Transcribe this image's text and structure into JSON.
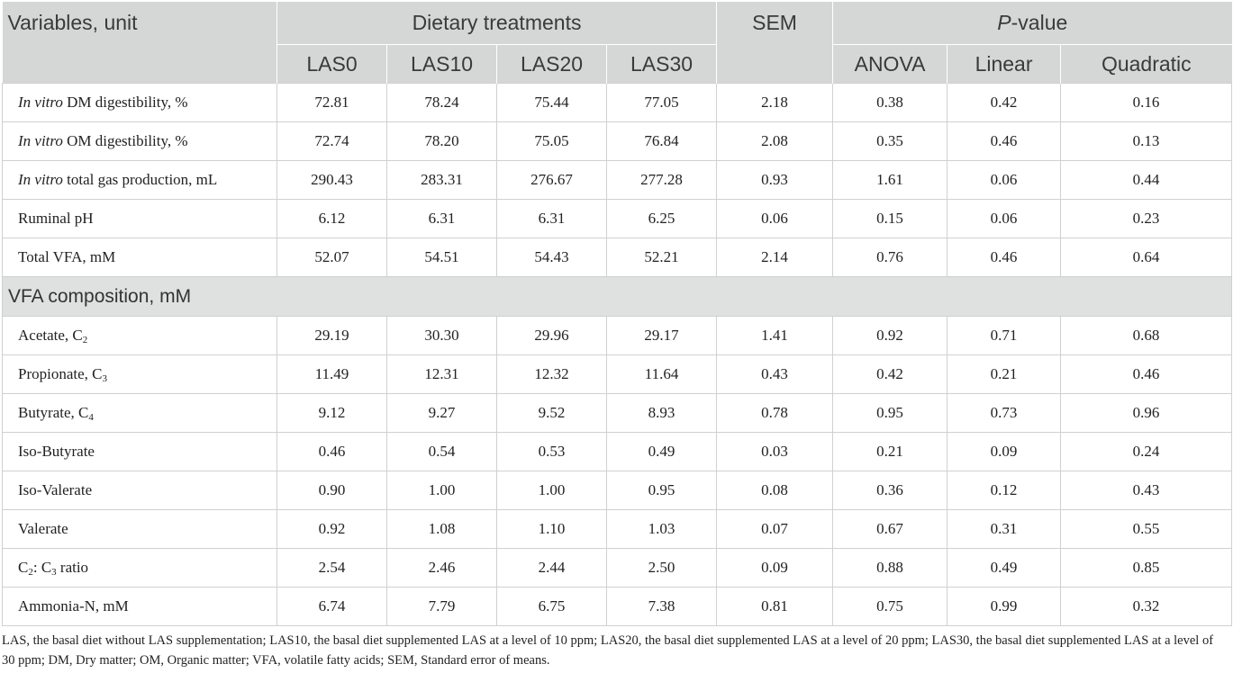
{
  "header": {
    "variables": "Variables, unit",
    "dietary_treatments": "Dietary treatments",
    "sem": "SEM",
    "p_value_letter": "P",
    "p_value_rest": "-value",
    "treatments": [
      "LAS0",
      "LAS10",
      "LAS20",
      "LAS30"
    ],
    "p_cols": [
      "ANOVA",
      "Linear",
      "Quadratic"
    ]
  },
  "rows_top": [
    {
      "italic": "In vitro",
      "label": " DM digestibility, %",
      "values": [
        "72.81",
        "78.24",
        "75.44",
        "77.05",
        "2.18",
        "0.38",
        "0.42",
        "0.16"
      ]
    },
    {
      "italic": "In vitro",
      "label": " OM digestibility, %",
      "values": [
        "72.74",
        "78.20",
        "75.05",
        "76.84",
        "2.08",
        "0.35",
        "0.46",
        "0.13"
      ]
    },
    {
      "italic": "In vitro",
      "label": " total gas production, mL",
      "values": [
        "290.43",
        "283.31",
        "276.67",
        "277.28",
        "0.93",
        "1.61",
        "0.06",
        "0.44"
      ]
    },
    {
      "label": "Ruminal pH",
      "values": [
        "6.12",
        "6.31",
        "6.31",
        "6.25",
        "0.06",
        "0.15",
        "0.06",
        "0.23"
      ]
    },
    {
      "label": "Total VFA, mM",
      "values": [
        "52.07",
        "54.51",
        "54.43",
        "52.21",
        "2.14",
        "0.76",
        "0.46",
        "0.64"
      ]
    }
  ],
  "section_label": "VFA composition, mM",
  "rows_vfa": [
    {
      "label": "Acetate, C",
      "sub": "2",
      "values": [
        "29.19",
        "30.30",
        "29.96",
        "29.17",
        "1.41",
        "0.92",
        "0.71",
        "0.68"
      ]
    },
    {
      "label": "Propionate, C",
      "sub": "3",
      "values": [
        "11.49",
        "12.31",
        "12.32",
        "11.64",
        "0.43",
        "0.42",
        "0.21",
        "0.46"
      ]
    },
    {
      "label": "Butyrate, C",
      "sub": "4",
      "values": [
        "9.12",
        "9.27",
        "9.52",
        "8.93",
        "0.78",
        "0.95",
        "0.73",
        "0.96"
      ]
    },
    {
      "label": "Iso-Butyrate",
      "values": [
        "0.46",
        "0.54",
        "0.53",
        "0.49",
        "0.03",
        "0.21",
        "0.09",
        "0.24"
      ]
    },
    {
      "label": "Iso-Valerate",
      "values": [
        "0.90",
        "1.00",
        "1.00",
        "0.95",
        "0.08",
        "0.36",
        "0.12",
        "0.43"
      ]
    },
    {
      "label": "Valerate",
      "values": [
        "0.92",
        "1.08",
        "1.10",
        "1.03",
        "0.07",
        "0.67",
        "0.31",
        "0.55"
      ]
    },
    {
      "ratio": {
        "a": "C",
        "a_sub": "2",
        "mid": ": C",
        "b_sub": "3",
        "rest": " ratio"
      },
      "values": [
        "2.54",
        "2.46",
        "2.44",
        "2.50",
        "0.09",
        "0.88",
        "0.49",
        "0.85"
      ]
    },
    {
      "label": "Ammonia-N, mM",
      "values": [
        "6.74",
        "7.79",
        "6.75",
        "7.38",
        "0.81",
        "0.75",
        "0.99",
        "0.32"
      ]
    }
  ],
  "footnote": "LAS, the basal diet without LAS supplementation; LAS10, the basal diet supplemented LAS at a level of 10 ppm; LAS20, the basal diet supplemented LAS at a level of 20 ppm; LAS30, the basal diet supplemented LAS at a level of 30 ppm; DM, Dry matter; OM, Organic matter; VFA, volatile fatty acids; SEM, Standard error of means."
}
